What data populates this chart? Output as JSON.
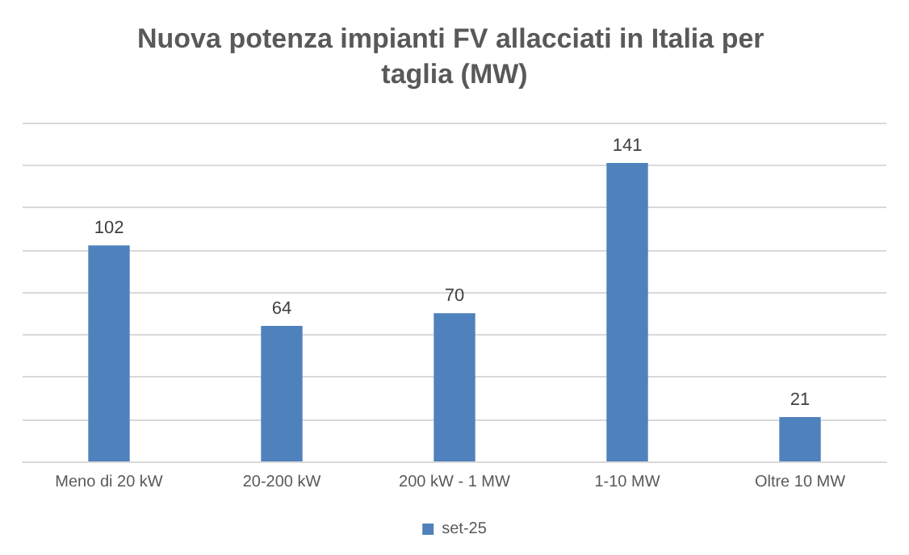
{
  "chart_data": {
    "type": "bar",
    "title": "Nuova potenza impianti FV allacciati in Italia per taglia (MW)",
    "categories": [
      "Meno di 20 kW",
      "20-200 kW",
      "200 kW - 1 MW",
      "1-10 MW",
      "Oltre 10 MW"
    ],
    "series": [
      {
        "name": "set-25",
        "color": "#4f81bd",
        "values": [
          102,
          64,
          70,
          141,
          21
        ]
      }
    ],
    "ylim": [
      0,
      160
    ],
    "yticks": [
      {
        "value": 0,
        "label": null
      },
      {
        "value": 20,
        "label": null
      },
      {
        "value": 40,
        "label": null
      },
      {
        "value": 60,
        "label": null
      },
      {
        "value": 80,
        "label": null
      },
      {
        "value": 100,
        "label": null
      },
      {
        "value": 120,
        "label": null
      },
      {
        "value": 140,
        "label": null
      },
      {
        "value": 160,
        "label": null
      }
    ],
    "tick_labels": "x",
    "grid": "y",
    "legend": "bottom",
    "data_labels": true
  }
}
